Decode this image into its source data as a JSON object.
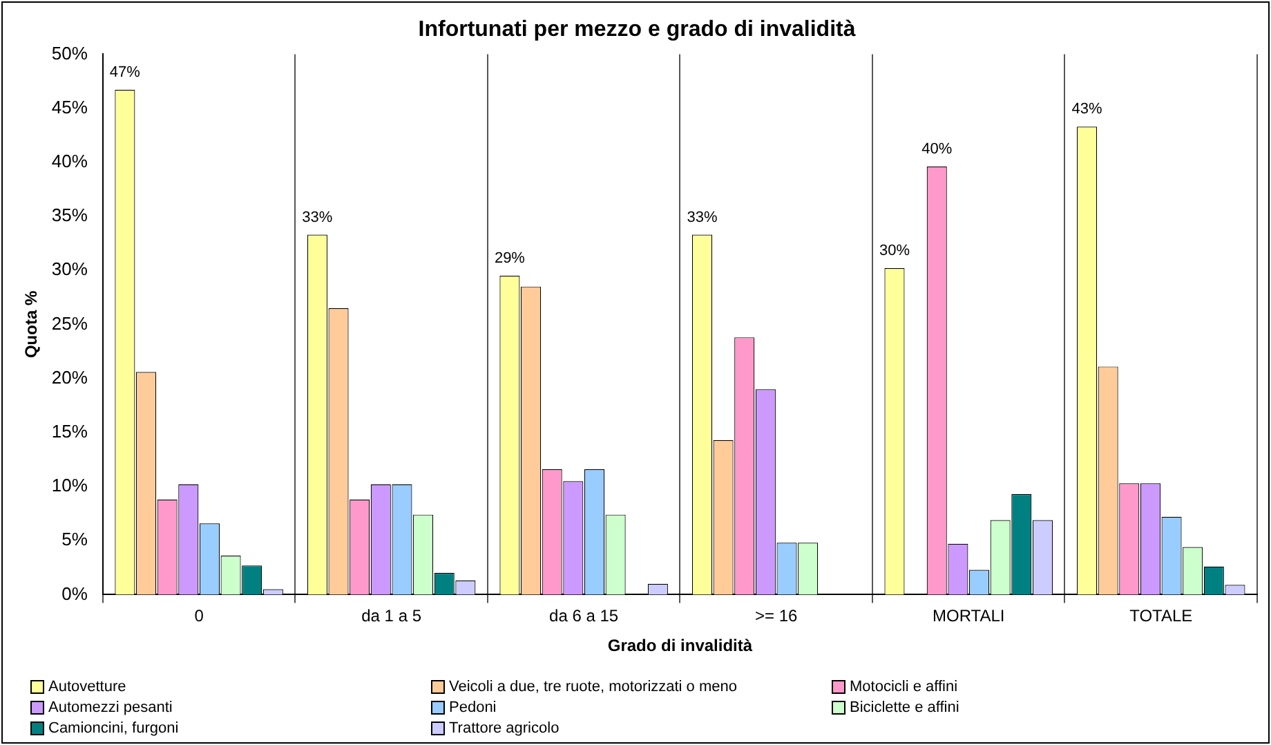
{
  "chart_data": {
    "type": "bar",
    "title": "Infortunati per mezzo e grado di invalidità",
    "xlabel": "Grado di invalidità",
    "ylabel": "Quota %",
    "categories": [
      "0",
      "da 1 a 5",
      "da 6 a 15",
      ">= 16",
      "MORTALI",
      "TOTALE"
    ],
    "series": [
      {
        "name": "Autovetture",
        "color": "#ffff99",
        "values": [
          46.7,
          33.3,
          29.5,
          33.3,
          30.2,
          43.3
        ],
        "value_labels": [
          "47%",
          "33%",
          "29%",
          "33%",
          "30%",
          "43%"
        ]
      },
      {
        "name": "Veicoli a due, tre ruote, motorizzati o meno",
        "color": "#ffcc99",
        "values": [
          20.6,
          26.5,
          28.5,
          14.3,
          0,
          21.1
        ]
      },
      {
        "name": "Motocicli e affini",
        "color": "#ff99cc",
        "values": [
          8.8,
          8.8,
          11.6,
          23.8,
          39.6,
          10.3
        ],
        "value_labels": [
          null,
          null,
          null,
          null,
          "40%",
          null
        ]
      },
      {
        "name": "Automezzi pesanti",
        "color": "#cc99ff",
        "values": [
          10.2,
          10.2,
          10.5,
          19.0,
          4.7,
          10.3
        ]
      },
      {
        "name": "Pedoni",
        "color": "#99ccff",
        "values": [
          6.6,
          10.2,
          11.6,
          4.8,
          2.3,
          7.2
        ]
      },
      {
        "name": "Biciclette e affini",
        "color": "#ccffcc",
        "values": [
          3.6,
          7.4,
          7.4,
          4.8,
          6.9,
          4.4
        ]
      },
      {
        "name": "Camioncini, furgoni",
        "color": "#008080",
        "values": [
          2.7,
          2.0,
          0,
          0,
          9.3,
          2.6
        ]
      },
      {
        "name": "Trattore agricolo",
        "color": "#ccccff",
        "values": [
          0.5,
          1.3,
          1.0,
          0,
          6.9,
          0.9
        ]
      }
    ],
    "ylim": [
      0,
      50
    ],
    "yticks": [
      {
        "value": 0,
        "label": "0%"
      },
      {
        "value": 5,
        "label": "5%"
      },
      {
        "value": 10,
        "label": "10%"
      },
      {
        "value": 15,
        "label": "15%"
      },
      {
        "value": 20,
        "label": "20%"
      },
      {
        "value": 25,
        "label": "25%"
      },
      {
        "value": 30,
        "label": "30%"
      },
      {
        "value": 35,
        "label": "35%"
      },
      {
        "value": 40,
        "label": "40%"
      },
      {
        "value": 45,
        "label": "45%"
      },
      {
        "value": 50,
        "label": "50%"
      }
    ],
    "grid": "x",
    "legend": "bottom"
  }
}
